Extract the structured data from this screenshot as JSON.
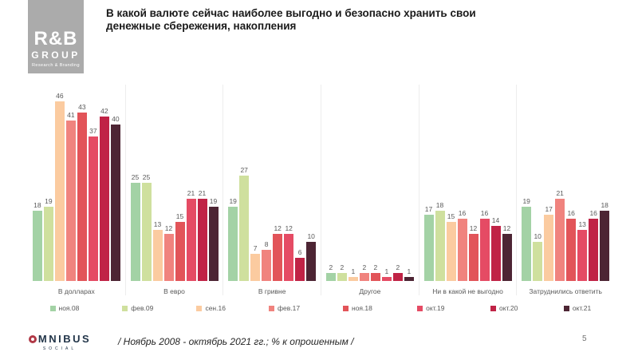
{
  "header": {
    "logo": {
      "line1": "R&B",
      "line2": "GROUP",
      "line3": "Research & Branding"
    },
    "title": "В какой валюте сейчас наиболее выгодно и безопасно хранить свои денежные сбережения, накопления"
  },
  "chart_data": {
    "type": "bar",
    "title": "В какой валюте сейчас наиболее выгодно и безопасно хранить свои денежные сбережения, накопления",
    "categories": [
      "В долларах",
      "В евро",
      "В гривне",
      "Другое",
      "Ни в какой не выгодно",
      "Затруднились ответить"
    ],
    "series": [
      {
        "name": "ноя.08",
        "color": "#a3d2a5",
        "values": [
          18,
          25,
          19,
          2,
          17,
          19
        ]
      },
      {
        "name": "фев.09",
        "color": "#cfe09e",
        "values": [
          19,
          25,
          27,
          2,
          18,
          10
        ]
      },
      {
        "name": "сен.16",
        "color": "#fbcba0",
        "values": [
          46,
          13,
          7,
          1,
          15,
          17
        ]
      },
      {
        "name": "фев.17",
        "color": "#f0837e",
        "values": [
          41,
          12,
          8,
          2,
          16,
          21
        ]
      },
      {
        "name": "ноя.18",
        "color": "#e25459",
        "values": [
          43,
          15,
          12,
          2,
          12,
          16
        ]
      },
      {
        "name": "окт.19",
        "color": "#e54b64",
        "values": [
          37,
          21,
          12,
          1,
          16,
          13
        ]
      },
      {
        "name": "окт.20",
        "color": "#c02346",
        "values": [
          42,
          21,
          6,
          2,
          14,
          16
        ]
      },
      {
        "name": "окт.21",
        "color": "#4d2534",
        "values": [
          40,
          19,
          10,
          1,
          12,
          18
        ]
      }
    ],
    "value_labels": true,
    "grid": false,
    "legend_position": "bottom",
    "ylim": [
      0,
      50
    ]
  },
  "footer": {
    "omnibus_logo": {
      "o_icon": "red-ring",
      "rest": "MNIBUS",
      "sub": "SOCIAL"
    },
    "note": "/ Ноябрь 2008 - октябрь 2021 гг.; % к опрошенным /",
    "page_number": "5"
  }
}
